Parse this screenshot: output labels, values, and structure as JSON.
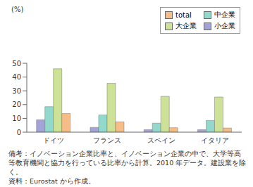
{
  "chart_data": {
    "type": "bar",
    "ylabel": "(%)",
    "categories": [
      "ドイツ",
      "フランス",
      "スペイン",
      "イタリア"
    ],
    "series": [
      {
        "name": "小企業",
        "color": "#a3a3d6",
        "values": [
          9,
          3.5,
          1.8,
          1.8
        ]
      },
      {
        "name": "中企業",
        "color": "#93d8cc",
        "values": [
          18.5,
          12.5,
          6.5,
          8.5
        ]
      },
      {
        "name": "大企業",
        "color": "#cde296",
        "values": [
          46,
          35.5,
          26,
          25.5
        ]
      },
      {
        "name": "total",
        "color": "#f7bd86",
        "values": [
          13.5,
          7.5,
          3.2,
          3
        ]
      }
    ],
    "ylim": [
      0,
      50
    ],
    "yticks": [
      0,
      10,
      20,
      30,
      40,
      50
    ],
    "grid": false,
    "legend": "top-right",
    "annotations": [
      "備考：イノベーション企業比率と、イノベーション企業の中で、大学等高等教育機関と協力を行っている比率から計算。2010 年データ。建設業を除く。",
      "資料：Eurostat から作成。"
    ]
  }
}
